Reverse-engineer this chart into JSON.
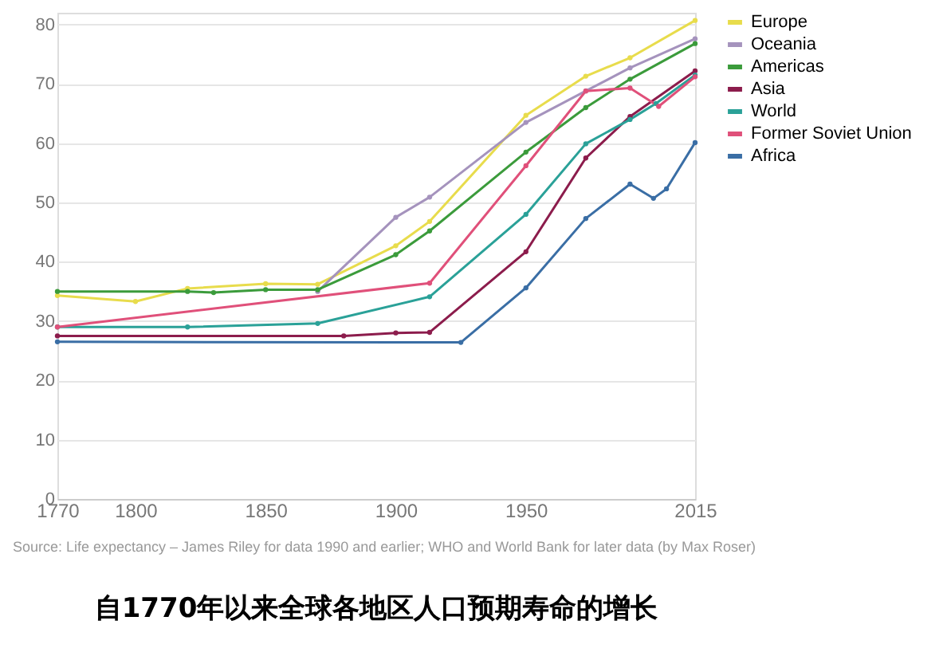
{
  "chart_data": {
    "type": "line",
    "title": "自1770年以来全球各地区人口预期寿命的增长",
    "annotations": [
      "Source: Life expectancy – James Riley for data 1990 and earlier; WHO and World Bank for later data (by Max Roser)"
    ],
    "xlim": [
      1770,
      2015
    ],
    "xticks": [
      1770,
      1800,
      1850,
      1900,
      1950,
      2015
    ],
    "ylim": [
      0,
      82
    ],
    "yticks": [
      0,
      10,
      20,
      30,
      40,
      50,
      60,
      70,
      80
    ],
    "grid": "y",
    "legend": "right",
    "marker": "circle",
    "line_style": "solid",
    "series": [
      {
        "name": "Europe",
        "color": "#e8dc4c",
        "x": [
          1770,
          1800,
          1820,
          1850,
          1870,
          1900,
          1913,
          1950,
          1973,
          1990,
          2015
        ],
        "values": [
          34.3,
          33.3,
          35.5,
          36.3,
          36.2,
          42.7,
          46.8,
          64.7,
          71.3,
          74.4,
          80.7
        ]
      },
      {
        "name": "Oceania",
        "color": "#a593bd",
        "x": [
          1870,
          1900,
          1913,
          1950,
          1973,
          1990,
          2015
        ],
        "values": [
          35,
          47.5,
          50.9,
          63.5,
          68.8,
          72.7,
          77.6
        ]
      },
      {
        "name": "Americas",
        "color": "#3b9b3b",
        "x": [
          1770,
          1820,
          1830,
          1850,
          1870,
          1900,
          1913,
          1950,
          1973,
          1990,
          2015
        ],
        "values": [
          35,
          35,
          34.8,
          35.3,
          35.3,
          41.2,
          45.2,
          58.5,
          66.0,
          70.8,
          76.8
        ]
      },
      {
        "name": "Asia",
        "color": "#8c1c4c",
        "x": [
          1770,
          1880,
          1900,
          1913,
          1950,
          1973,
          1990,
          2015
        ],
        "values": [
          27.5,
          27.5,
          28,
          28.1,
          41.7,
          57.5,
          64.5,
          72.2
        ]
      },
      {
        "name": "World",
        "color": "#2aa198",
        "x": [
          1770,
          1820,
          1870,
          1913,
          1950,
          1973,
          1990,
          2000,
          2015
        ],
        "values": [
          29,
          29,
          29.6,
          34.1,
          48.0,
          59.9,
          64.0,
          66.7,
          71.5
        ]
      },
      {
        "name": "Former Soviet Union",
        "color": "#e0507a",
        "x": [
          1770,
          1913,
          1950,
          1973,
          1990,
          2001,
          2015
        ],
        "values": [
          29,
          36.4,
          56.2,
          68.8,
          69.3,
          66.2,
          71.2
        ]
      },
      {
        "name": "Africa",
        "color": "#3a6ea5",
        "x": [
          1770,
          1925,
          1950,
          1973,
          1990,
          1999,
          2004,
          2015
        ],
        "values": [
          26.5,
          26.4,
          35.6,
          47.3,
          53.1,
          50.7,
          52.3,
          60.1
        ]
      }
    ]
  }
}
